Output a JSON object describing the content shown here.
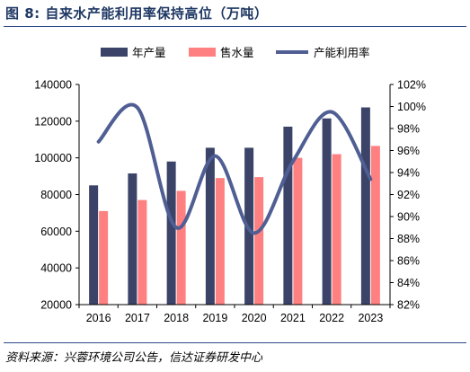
{
  "figure": {
    "title": "图 8:  自来水产能利用率保持高位（万吨）",
    "source": "资料来源：兴蓉环境公司公告，信达证券研发中心"
  },
  "colors": {
    "title": "#1f3864",
    "capacity_bar": "#3b4468",
    "sales_bar": "#ff8080",
    "utilization_line": "#4f5e93",
    "rule": "#2e4a86"
  },
  "chart_data": {
    "type": "bar+line",
    "categories": [
      "2016",
      "2017",
      "2018",
      "2019",
      "2020",
      "2021",
      "2022",
      "2023"
    ],
    "series": [
      {
        "name": "年产量",
        "type": "bar",
        "axis": "left",
        "values": [
          85000,
          91500,
          98000,
          105500,
          105500,
          117000,
          121500,
          127500
        ]
      },
      {
        "name": "售水量",
        "type": "bar",
        "axis": "left",
        "values": [
          71000,
          77000,
          82000,
          89000,
          89500,
          100000,
          102000,
          106500
        ]
      },
      {
        "name": "产能利用率",
        "type": "line",
        "axis": "right",
        "values": [
          96.8,
          99.9,
          89.0,
          95.5,
          88.5,
          95.0,
          99.5,
          93.4
        ]
      }
    ],
    "y_left": {
      "lim": [
        20000,
        140000
      ],
      "ticks": [
        "20000",
        "40000",
        "60000",
        "80000",
        "100000",
        "120000",
        "140000"
      ]
    },
    "y_right": {
      "lim": [
        82,
        102
      ],
      "ticks": [
        "82%",
        "84%",
        "86%",
        "88%",
        "90%",
        "92%",
        "94%",
        "96%",
        "98%",
        "100%",
        "102%"
      ]
    },
    "grid": false,
    "legend": "top"
  }
}
